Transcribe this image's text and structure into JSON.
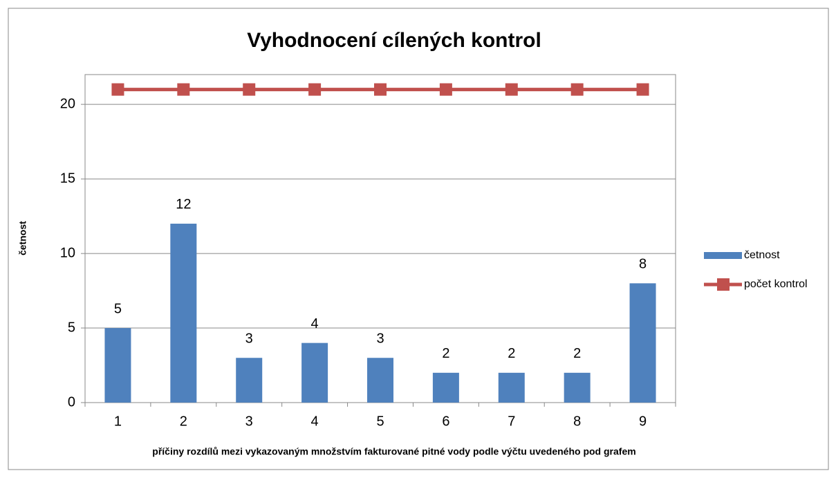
{
  "chart_data": {
    "type": "bar",
    "title": "Vyhodnocení cílených kontrol",
    "x_label": "příčiny rozdílů mezi vykazovaným množstvím fakturované pitné vody podle výčtu uvedeného pod grafem",
    "y_label": "četnost",
    "categories": [
      "1",
      "2",
      "3",
      "4",
      "5",
      "6",
      "7",
      "8",
      "9"
    ],
    "series": [
      {
        "name": "četnost",
        "type": "bar",
        "color": "#4f81bd",
        "values": [
          5,
          12,
          3,
          4,
          3,
          2,
          2,
          2,
          8
        ],
        "data_labels": true
      },
      {
        "name": "počet kontrol",
        "type": "line",
        "color": "#c0504d",
        "values": [
          21,
          21,
          21,
          21,
          21,
          21,
          21,
          21,
          21
        ],
        "data_labels": false
      }
    ],
    "ylim": [
      0,
      22
    ],
    "yticks": [
      0,
      5,
      10,
      15,
      20
    ],
    "grid": true,
    "legend": "right"
  }
}
